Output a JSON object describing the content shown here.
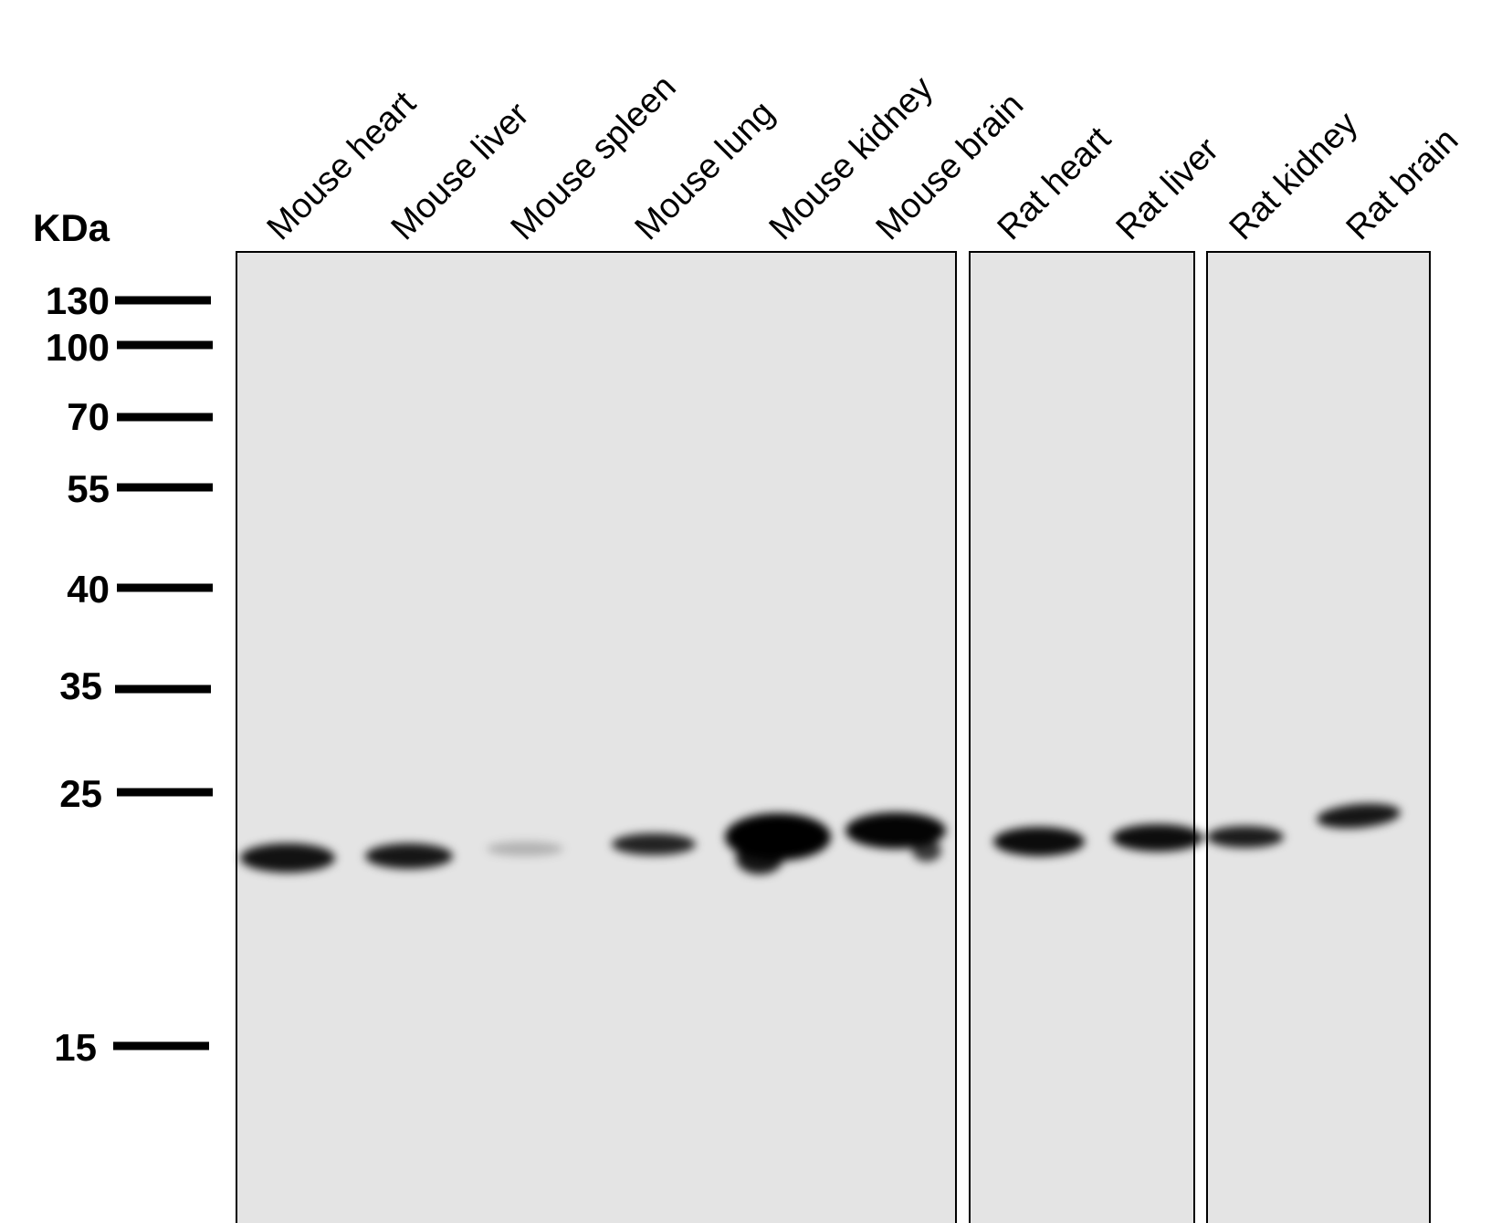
{
  "unit_label": "KDa",
  "markers": [
    {
      "label": "130",
      "kda": 130
    },
    {
      "label": "100",
      "kda": 100
    },
    {
      "label": "70",
      "kda": 70
    },
    {
      "label": "55",
      "kda": 55
    },
    {
      "label": "40",
      "kda": 40
    },
    {
      "label": "35",
      "kda": 35
    },
    {
      "label": "25",
      "kda": 25
    },
    {
      "label": "15",
      "kda": 15
    }
  ],
  "lanes": [
    {
      "label": "Mouse heart",
      "panel": 1,
      "band_intensity": 0.85
    },
    {
      "label": "Mouse liver",
      "panel": 1,
      "band_intensity": 0.8
    },
    {
      "label": "Mouse spleen",
      "panel": 1,
      "band_intensity": 0.15
    },
    {
      "label": "Mouse lung",
      "panel": 1,
      "band_intensity": 0.7
    },
    {
      "label": "Mouse kidney",
      "panel": 1,
      "band_intensity": 1.0
    },
    {
      "label": "Mouse brain",
      "panel": 1,
      "band_intensity": 0.95
    },
    {
      "label": "Rat heart",
      "panel": 2,
      "band_intensity": 0.9
    },
    {
      "label": "Rat liver",
      "panel": 2,
      "band_intensity": 0.88
    },
    {
      "label": "Rat kidney",
      "panel": 3,
      "band_intensity": 0.75
    },
    {
      "label": "Rat brain",
      "panel": 3,
      "band_intensity": 0.8
    }
  ],
  "colors": {
    "membrane": "#e4e4e4",
    "band": "#000000",
    "frame": "#000000"
  }
}
